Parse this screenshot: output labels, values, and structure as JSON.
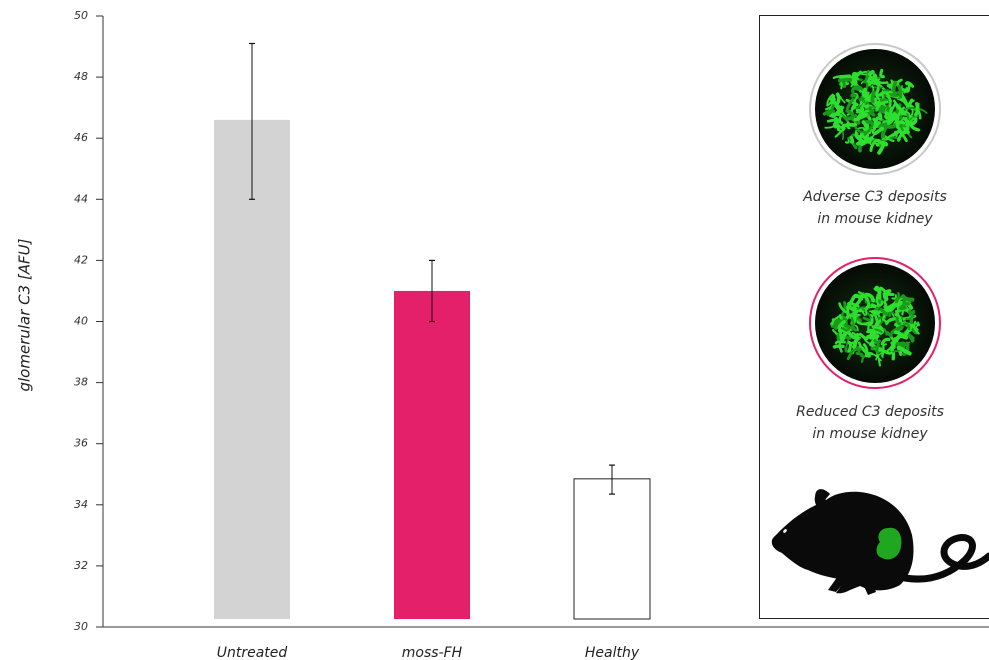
{
  "chart_data": {
    "type": "bar",
    "title": "",
    "xlabel": "",
    "ylabel": "glomerular C3 [AFU]",
    "ylim": [
      30,
      50
    ],
    "yticks": [
      30,
      32,
      34,
      36,
      38,
      40,
      42,
      44,
      46,
      48,
      50
    ],
    "grid": false,
    "categories": [
      "Untreated",
      "moss-FH",
      "Healthy"
    ],
    "values": [
      46.6,
      41.0,
      34.85
    ],
    "error_low": [
      44.0,
      40.0,
      34.35
    ],
    "error_high": [
      49.1,
      42.0,
      35.3
    ],
    "colors": [
      "#d3d3d3",
      "#e5206a",
      "#ffffff"
    ]
  },
  "panel": {
    "image_top": {
      "icon": "kidney-glomerulus-green-image",
      "ring_color": "#c8c8c8",
      "caption_line1": "Adverse C3 deposits",
      "caption_line2": "in mouse kidney"
    },
    "image_bottom": {
      "icon": "kidney-glomerulus-green-image",
      "ring_color": "#e5206a",
      "caption_line1": "Reduced C3 deposits",
      "caption_line2": "in mouse kidney"
    },
    "mouse_icon": "mouse-silhouette-icon",
    "kidney_color": "#1fa81f"
  }
}
